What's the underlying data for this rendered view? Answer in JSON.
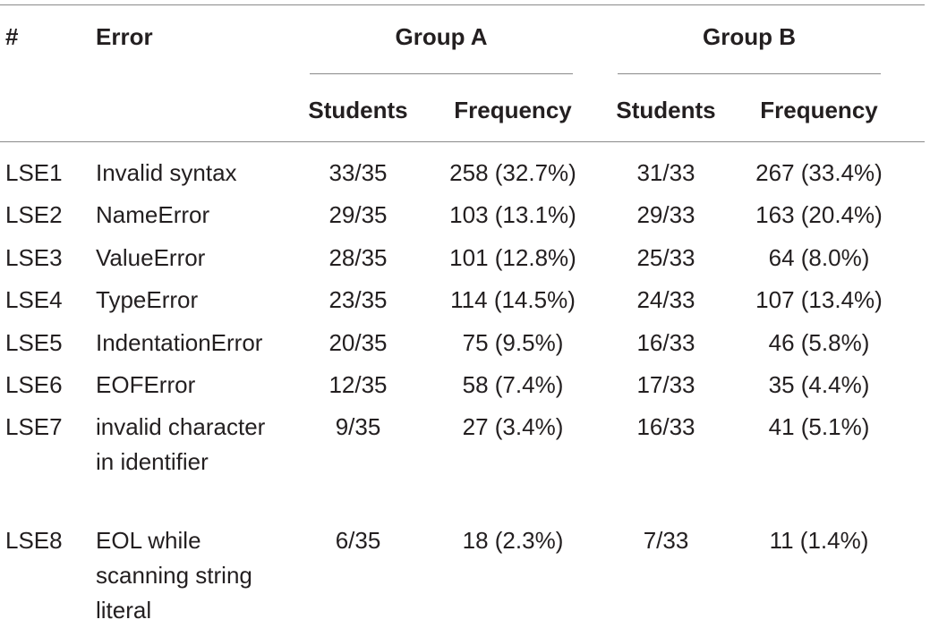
{
  "table": {
    "headers": {
      "hash": "#",
      "error": "Error",
      "group_a": "Group A",
      "group_b": "Group B",
      "a_students": "Students",
      "a_frequency": "Frequency",
      "b_students": "Students",
      "b_frequency": "Frequency"
    },
    "rows": [
      {
        "id": "LSE1",
        "error": "Invalid syntax",
        "a_students": "33/35",
        "a_frequency": "258 (32.7%)",
        "b_students": "31/33",
        "b_frequency": "267 (33.4%)"
      },
      {
        "id": "LSE2",
        "error": "NameError",
        "a_students": "29/35",
        "a_frequency": "103 (13.1%)",
        "b_students": "29/33",
        "b_frequency": "163 (20.4%)"
      },
      {
        "id": "LSE3",
        "error": "ValueError",
        "a_students": "28/35",
        "a_frequency": "101 (12.8%)",
        "b_students": "25/33",
        "b_frequency": "64 (8.0%)"
      },
      {
        "id": "LSE4",
        "error": "TypeError",
        "a_students": "23/35",
        "a_frequency": "114 (14.5%)",
        "b_students": "24/33",
        "b_frequency": "107 (13.4%)"
      },
      {
        "id": "LSE5",
        "error": "IndentationError",
        "a_students": "20/35",
        "a_frequency": "75 (9.5%)",
        "b_students": "16/33",
        "b_frequency": "46 (5.8%)"
      },
      {
        "id": "LSE6",
        "error": "EOFError",
        "a_students": "12/35",
        "a_frequency": "58 (7.4%)",
        "b_students": "17/33",
        "b_frequency": "35 (4.4%)"
      },
      {
        "id": "LSE7",
        "error": "invalid character in identifier",
        "a_students": "9/35",
        "a_frequency": "27 (3.4%)",
        "b_students": "16/33",
        "b_frequency": "41 (5.1%)"
      },
      {
        "id": "LSE8",
        "error": "EOL while scanning string literal",
        "a_students": "6/35",
        "a_frequency": "18 (2.3%)",
        "b_students": "7/33",
        "b_frequency": "11 (1.4%)"
      }
    ]
  }
}
